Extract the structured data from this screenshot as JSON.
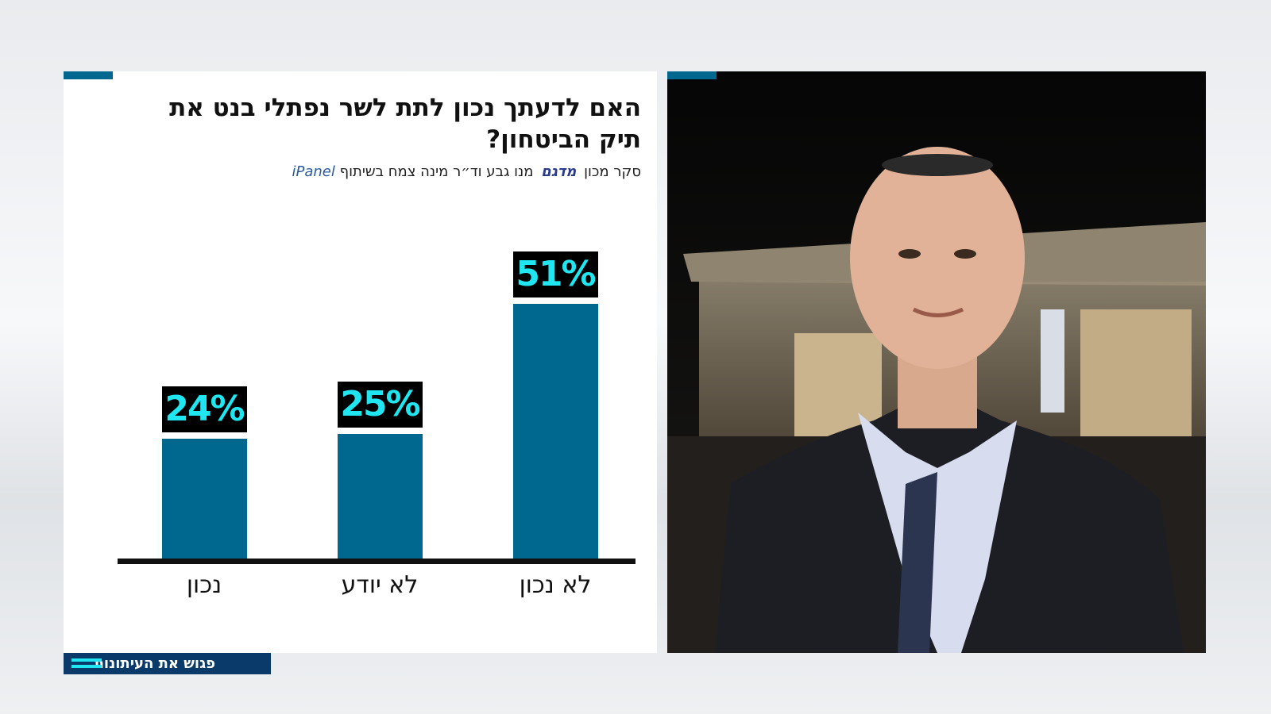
{
  "chart_data": {
    "type": "bar",
    "title": "האם לדעתך נכון לתת לשר נפתלי בנט את תיק הביטחון?",
    "subtitle": [
      "סקר מכון",
      "מדגם",
      "מנו גבע וד״ר מינה צמח בשיתוף",
      "iPanel"
    ],
    "categories": [
      "נכון",
      "לא יודע",
      "לא נכון"
    ],
    "values": [
      24,
      25,
      51
    ],
    "value_labels": [
      "24%",
      "25%",
      "51%"
    ],
    "color": "#00688f"
  },
  "footer": "פגוש את העיתונות"
}
